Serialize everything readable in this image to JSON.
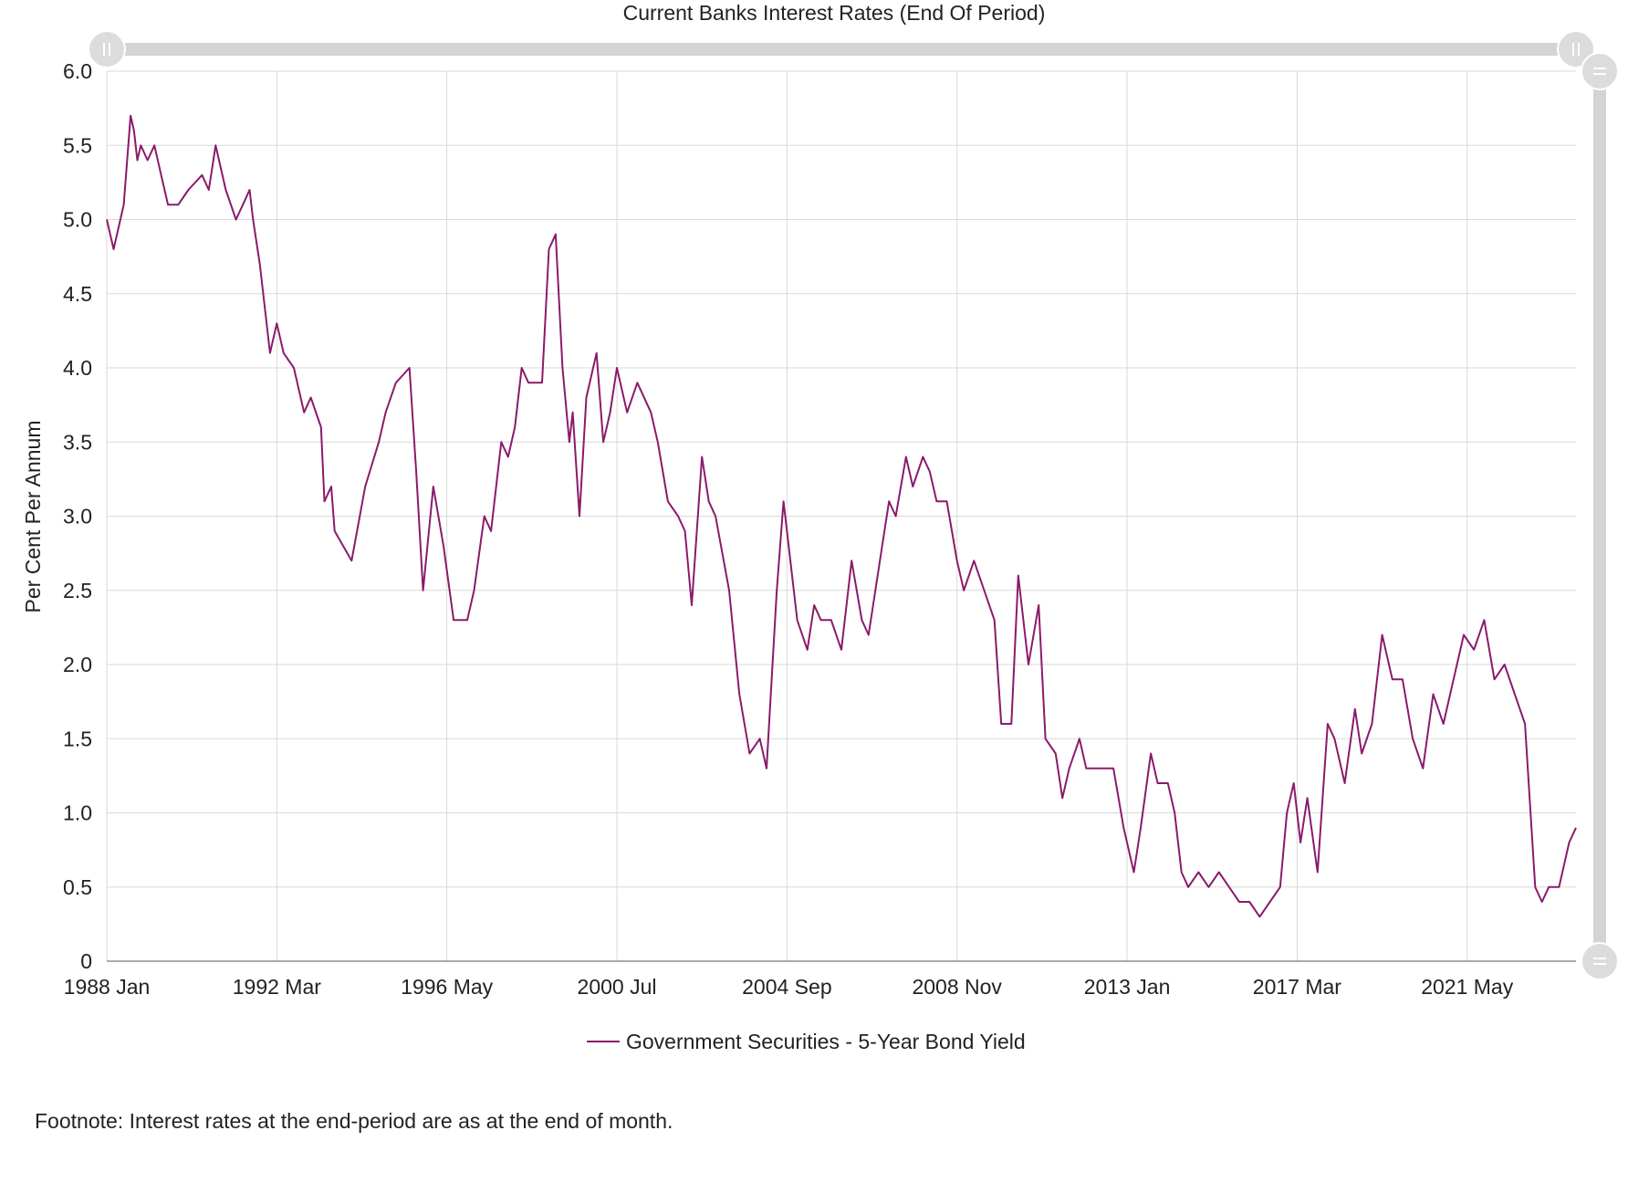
{
  "chart_data": {
    "type": "line",
    "title": "Current Banks Interest Rates (End Of Period)",
    "xlabel": "",
    "ylabel": "Per Cent Per Annum",
    "ylim": [
      0,
      6.0
    ],
    "y_ticks": [
      "0",
      "0.5",
      "1.0",
      "1.5",
      "2.0",
      "2.5",
      "3.0",
      "3.5",
      "4.0",
      "4.5",
      "5.0",
      "5.5",
      "6.0"
    ],
    "x_ticks": [
      "1988 Jan",
      "1992 Mar",
      "1996 May",
      "2000 Jul",
      "2004 Sep",
      "2008 Nov",
      "2013 Jan",
      "2017 Mar",
      "2021 May"
    ],
    "x_range": [
      "1988-01",
      "2024-01"
    ],
    "grid": true,
    "legend_position": "bottom-center",
    "series": [
      {
        "name": "Government Securities - 5-Year Bond Yield",
        "color": "#8b1a6b",
        "points": [
          [
            "1988-01",
            5.0
          ],
          [
            "1988-03",
            4.8
          ],
          [
            "1988-06",
            5.1
          ],
          [
            "1988-08",
            5.7
          ],
          [
            "1988-09",
            5.6
          ],
          [
            "1988-10",
            5.4
          ],
          [
            "1988-11",
            5.5
          ],
          [
            "1989-01",
            5.4
          ],
          [
            "1989-03",
            5.5
          ],
          [
            "1989-05",
            5.3
          ],
          [
            "1989-07",
            5.1
          ],
          [
            "1989-10",
            5.1
          ],
          [
            "1990-01",
            5.2
          ],
          [
            "1990-05",
            5.3
          ],
          [
            "1990-07",
            5.2
          ],
          [
            "1990-09",
            5.5
          ],
          [
            "1990-10",
            5.4
          ],
          [
            "1990-12",
            5.2
          ],
          [
            "1991-03",
            5.0
          ],
          [
            "1991-05",
            5.1
          ],
          [
            "1991-07",
            5.2
          ],
          [
            "1991-08",
            5.0
          ],
          [
            "1991-10",
            4.7
          ],
          [
            "1992-01",
            4.1
          ],
          [
            "1992-03",
            4.3
          ],
          [
            "1992-05",
            4.1
          ],
          [
            "1992-08",
            4.0
          ],
          [
            "1992-11",
            3.7
          ],
          [
            "1993-01",
            3.8
          ],
          [
            "1993-04",
            3.6
          ],
          [
            "1993-05",
            3.1
          ],
          [
            "1993-07",
            3.2
          ],
          [
            "1993-08",
            2.9
          ],
          [
            "1994-01",
            2.7
          ],
          [
            "1994-05",
            3.2
          ],
          [
            "1994-09",
            3.5
          ],
          [
            "1994-11",
            3.7
          ],
          [
            "1995-02",
            3.9
          ],
          [
            "1995-06",
            4.0
          ],
          [
            "1995-08",
            3.3
          ],
          [
            "1995-10",
            2.5
          ],
          [
            "1996-01",
            3.2
          ],
          [
            "1996-04",
            2.8
          ],
          [
            "1996-07",
            2.3
          ],
          [
            "1996-11",
            2.3
          ],
          [
            "1997-01",
            2.5
          ],
          [
            "1997-04",
            3.0
          ],
          [
            "1997-06",
            2.9
          ],
          [
            "1997-09",
            3.5
          ],
          [
            "1997-11",
            3.4
          ],
          [
            "1998-01",
            3.6
          ],
          [
            "1998-03",
            4.0
          ],
          [
            "1998-05",
            3.9
          ],
          [
            "1998-09",
            3.9
          ],
          [
            "1998-11",
            4.8
          ],
          [
            "1999-01",
            4.9
          ],
          [
            "1999-03",
            4.0
          ],
          [
            "1999-05",
            3.5
          ],
          [
            "1999-06",
            3.7
          ],
          [
            "1999-08",
            3.0
          ],
          [
            "1999-10",
            3.8
          ],
          [
            "2000-01",
            4.1
          ],
          [
            "2000-03",
            3.5
          ],
          [
            "2000-05",
            3.7
          ],
          [
            "2000-07",
            4.0
          ],
          [
            "2000-10",
            3.7
          ],
          [
            "2001-01",
            3.9
          ],
          [
            "2001-05",
            3.7
          ],
          [
            "2001-07",
            3.5
          ],
          [
            "2001-10",
            3.1
          ],
          [
            "2002-01",
            3.0
          ],
          [
            "2002-03",
            2.9
          ],
          [
            "2002-05",
            2.4
          ],
          [
            "2002-08",
            3.4
          ],
          [
            "2002-10",
            3.1
          ],
          [
            "2002-12",
            3.0
          ],
          [
            "2003-04",
            2.5
          ],
          [
            "2003-07",
            1.8
          ],
          [
            "2003-10",
            1.4
          ],
          [
            "2004-01",
            1.5
          ],
          [
            "2004-03",
            1.3
          ],
          [
            "2004-06",
            2.5
          ],
          [
            "2004-08",
            3.1
          ],
          [
            "2004-12",
            2.3
          ],
          [
            "2005-03",
            2.1
          ],
          [
            "2005-05",
            2.4
          ],
          [
            "2005-07",
            2.3
          ],
          [
            "2005-10",
            2.3
          ],
          [
            "2006-01",
            2.1
          ],
          [
            "2006-04",
            2.7
          ],
          [
            "2006-07",
            2.3
          ],
          [
            "2006-09",
            2.2
          ],
          [
            "2007-01",
            2.8
          ],
          [
            "2007-03",
            3.1
          ],
          [
            "2007-05",
            3.0
          ],
          [
            "2007-08",
            3.4
          ],
          [
            "2007-10",
            3.2
          ],
          [
            "2008-01",
            3.4
          ],
          [
            "2008-03",
            3.3
          ],
          [
            "2008-05",
            3.1
          ],
          [
            "2008-08",
            3.1
          ],
          [
            "2008-11",
            2.7
          ],
          [
            "2009-01",
            2.5
          ],
          [
            "2009-04",
            2.7
          ],
          [
            "2009-07",
            2.5
          ],
          [
            "2009-10",
            2.3
          ],
          [
            "2009-12",
            1.6
          ],
          [
            "2010-03",
            1.6
          ],
          [
            "2010-05",
            2.6
          ],
          [
            "2010-08",
            2.0
          ],
          [
            "2010-11",
            2.4
          ],
          [
            "2011-01",
            1.5
          ],
          [
            "2011-04",
            1.4
          ],
          [
            "2011-06",
            1.1
          ],
          [
            "2011-08",
            1.3
          ],
          [
            "2011-11",
            1.5
          ],
          [
            "2012-01",
            1.3
          ],
          [
            "2012-04",
            1.3
          ],
          [
            "2012-06",
            1.3
          ],
          [
            "2012-09",
            1.3
          ],
          [
            "2012-12",
            0.9
          ],
          [
            "2013-03",
            0.6
          ],
          [
            "2013-05",
            0.9
          ],
          [
            "2013-08",
            1.4
          ],
          [
            "2013-10",
            1.2
          ],
          [
            "2014-01",
            1.2
          ],
          [
            "2014-03",
            1.0
          ],
          [
            "2014-05",
            0.6
          ],
          [
            "2014-07",
            0.5
          ],
          [
            "2014-10",
            0.6
          ],
          [
            "2015-01",
            0.5
          ],
          [
            "2015-04",
            0.6
          ],
          [
            "2015-07",
            0.5
          ],
          [
            "2015-10",
            0.4
          ],
          [
            "2016-01",
            0.4
          ],
          [
            "2016-04",
            0.3
          ],
          [
            "2016-07",
            0.4
          ],
          [
            "2016-10",
            0.5
          ],
          [
            "2016-12",
            1.0
          ],
          [
            "2017-02",
            1.2
          ],
          [
            "2017-04",
            0.8
          ],
          [
            "2017-06",
            1.1
          ],
          [
            "2017-09",
            0.6
          ],
          [
            "2017-12",
            1.6
          ],
          [
            "2018-02",
            1.5
          ],
          [
            "2018-05",
            1.2
          ],
          [
            "2018-08",
            1.7
          ],
          [
            "2018-10",
            1.4
          ],
          [
            "2019-01",
            1.6
          ],
          [
            "2019-04",
            2.2
          ],
          [
            "2019-07",
            1.9
          ],
          [
            "2019-10",
            1.9
          ],
          [
            "2020-01",
            1.5
          ],
          [
            "2020-04",
            1.3
          ],
          [
            "2020-07",
            1.8
          ],
          [
            "2020-10",
            1.6
          ],
          [
            "2021-01",
            1.9
          ],
          [
            "2021-04",
            2.2
          ],
          [
            "2021-07",
            2.1
          ],
          [
            "2021-10",
            2.3
          ],
          [
            "2022-01",
            1.9
          ],
          [
            "2022-04",
            2.0
          ],
          [
            "2022-07",
            1.8
          ],
          [
            "2022-10",
            1.6
          ],
          [
            "2023-01",
            0.5
          ],
          [
            "2023-03",
            0.4
          ],
          [
            "2023-05",
            0.5
          ],
          [
            "2023-08",
            0.5
          ],
          [
            "2023-11",
            0.8
          ],
          [
            "2024-01",
            0.9
          ]
        ]
      }
    ]
  },
  "footnote": "Footnote: Interest rates at the end-period are as at the end of month."
}
